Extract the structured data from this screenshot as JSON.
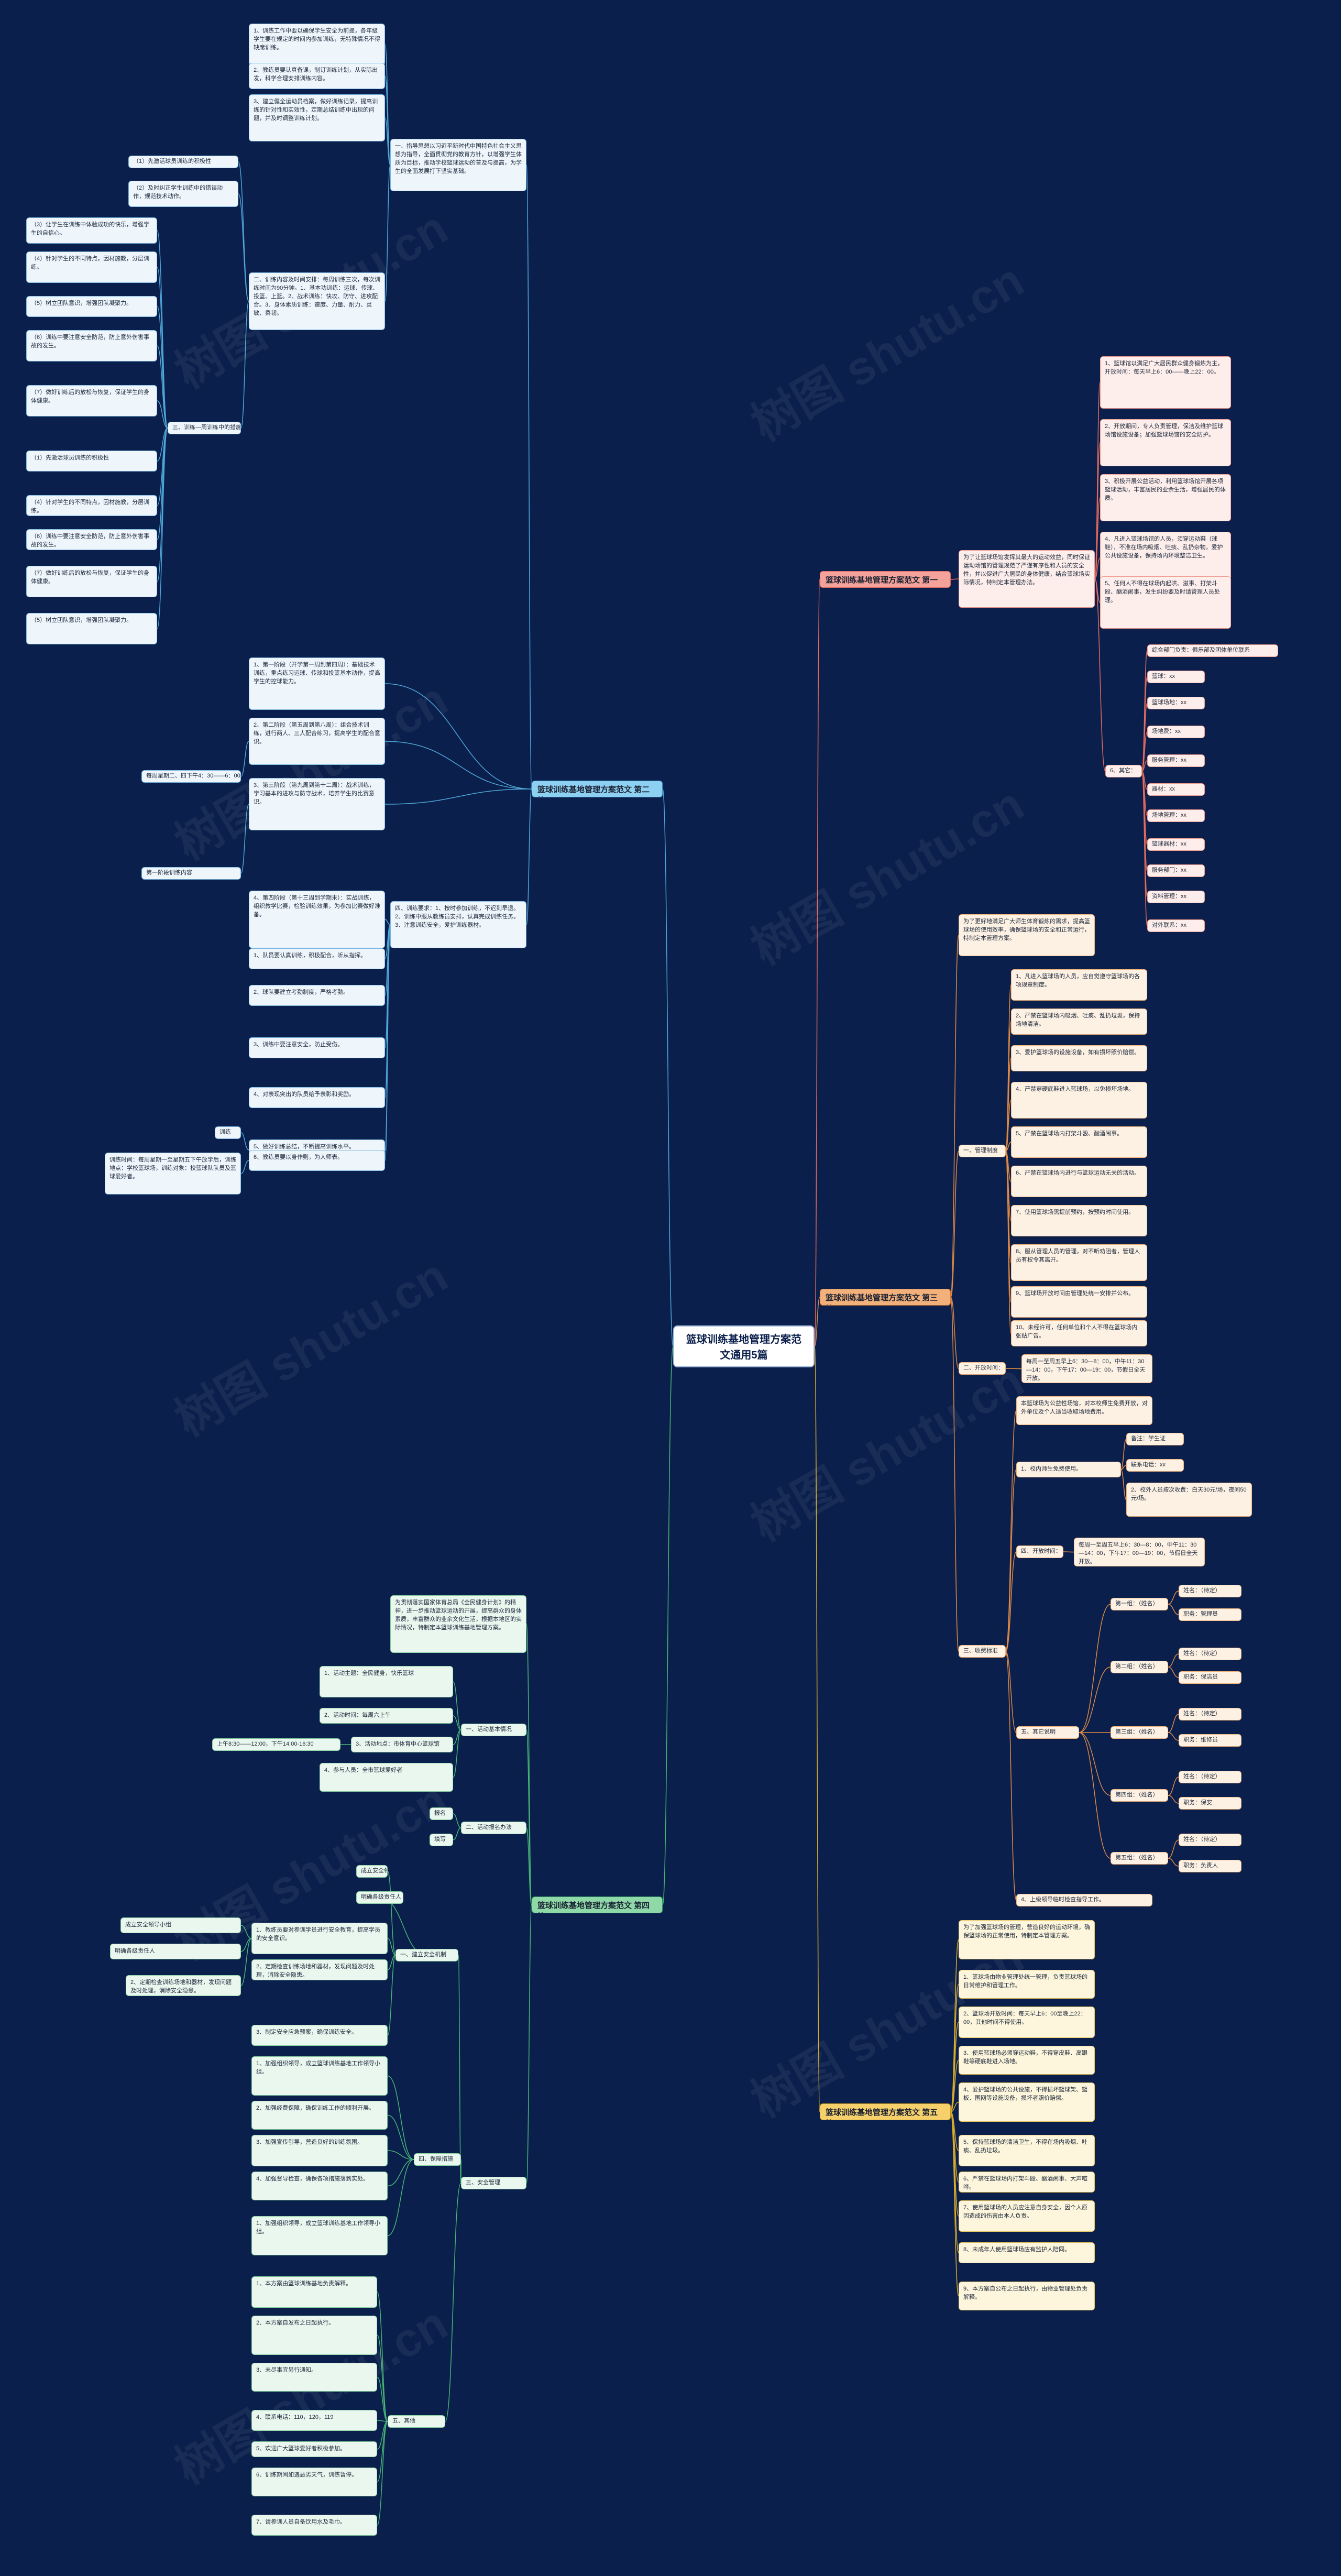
{
  "root": "篮球训练基地管理方案范文通用5篇",
  "watermark": "树图 shutu.cn",
  "branches": {
    "b1": "篮球训练基地管理方案范文 第一篇",
    "b2": "篮球训练基地管理方案范文 第二篇",
    "b3": "篮球训练基地管理方案范文 第三篇",
    "b4": "篮球训练基地管理方案范文 第四篇",
    "b5": "篮球训练基地管理方案范文 第五篇"
  },
  "b1": {
    "intro": "为了让篮球场馆发挥其最大的运动效益，同时保证运动场馆的管理规范了严谨有序性和人员的安全性，并以促进广大居民的身体健康，结合篮球场实际情况，特制定本管理办法。",
    "items": [
      "1、篮球馆以满足广大居民群众健身锻炼为主，开放时间：每天早上6：00——晚上22：00。",
      "2、开放期间，专人负责管理，保洁及维护篮球场馆设施设备；加强篮球场馆的安全防护。",
      "3、积极开展公益活动，利用篮球场馆开展各项篮球活动，丰富居民的业余生活，增强居民的体质。",
      "4、凡进入篮球场馆的人员，须穿运动鞋（球鞋），不准在场内吸烟、吐痰、乱扔杂物，爱护公共设施设备，保持场内环境整洁卫生。",
      "5、任何人不得在球场内起哄、滋事、打架斗殴、酗酒闹事，发生纠纷要及时请管理人员处理。"
    ],
    "sub_parent": "6、其它：",
    "subs": [
      "综合部门负责：俱乐部及团体单位联系",
      "篮球：xx",
      "篮球场地：xx",
      "场地费：xx",
      "服务管理：xx",
      "器材：xx",
      "场地管理：xx",
      "篮球器材：xx",
      "服务部门：xx",
      "资料管理：xx",
      "对外联系：xx"
    ]
  },
  "b2": {
    "goal": "一、指导思想以习近平新时代中国特色社会主义思想为指导，全面贯彻党的教育方针，以增强学生体质为目标，推动学校篮球运动的普及与提高，为学生的全面发展打下坚实基础。",
    "g_items": [
      "1、训练工作中要以确保学生安全为前提，各年级学生要在规定的时间内参加训练，无特殊情况不得缺席训练。",
      "2、教练员要认真备课，制订训练计划，从实际出发，科学合理安排训练内容。",
      "3、建立健全运动员档案，做好训练记录，提高训练的针对性和实效性，定期总结训练中出现的问题，并及时调整训练计划。"
    ],
    "section2": "二、训练内容及时间安排：每周训练三次，每次训练时间为90分钟。1、基本功训练：运球、传球、投篮、上篮。2、战术训练：快攻、防守、进攻配合。3、身体素质训练：速度、力量、耐力、灵敏、柔韧。",
    "left_items": [
      "（1）先激活球员训练的积极性",
      "（2）及时纠正学生训练中的错误动作，规范技术动作。",
      "（3）让学生在训练中体验成功的快乐，增强学生的自信心。",
      "（4）针对学生的不同特点，因材施教，分层训练。",
      "（5）树立团队意识，增强团队凝聚力。",
      "（6）训练中要注意安全防范，防止意外伤害事故的发生。",
      "（7）做好训练后的放松与恢复，保证学生的身体健康。"
    ],
    "label_class": "三、训练—周训练中的措施：",
    "mid_items": [
      "1、第一阶段（开学第一周到第四周）：基础技术训练，重点练习运球、传球和投篮基本动作，提高学生的控球能力。",
      "2、第二阶段（第五周到第八周）：组合技术训练，进行两人、三人配合练习，提高学生的配合意识。",
      "3、第三阶段（第九周到第十二周）：战术训练，学习基本的进攻与防守战术，培养学生的比赛意识。",
      "4、第四阶段（第十三周到学期末）：实战训练，组织教学比赛，检验训练效果，为参加比赛做好准备。"
    ],
    "schedule_left": "每周星期二、四下午4：30——6：00",
    "schedule_left2": "第一阶段训练内容",
    "sec4": "四、训练要求：1、按时参加训练，不迟到早退。2、训练中服从教练员安排，认真完成训练任务。3、注意训练安全，爱护训练器材。",
    "tail": [
      "1、队员要认真训练，积极配合，听从指挥。",
      "2、球队要建立考勤制度，严格考勤。",
      "3、训练中要注意安全，防止受伤。",
      "4、对表现突出的队员给予表彰和奖励。",
      "5、做好训练总结，不断提高训练水平。",
      "6、教练员要以身作则，为人师表。"
    ],
    "tail_small": "训练",
    "tail_left": "训练时间：每周星期一至星期五下午放学后，训练地点：学校篮球场，训练对象：校篮球队队员及篮球爱好者。"
  },
  "b3": {
    "intro": "为了更好地满足广大师生体育锻炼的需求，提高篮球场的使用效率，确保篮球场的安全和正常运行，特制定本管理方案。",
    "section1": "一、管理制度",
    "rules": [
      "1、凡进入篮球场的人员，应自觉遵守篮球场的各项规章制度。",
      "2、严禁在篮球场内吸烟、吐痰、乱扔垃圾，保持场地清洁。",
      "3、爱护篮球场的设施设备，如有损坏照价赔偿。",
      "4、严禁穿硬底鞋进入篮球场，以免损坏场地。",
      "5、严禁在篮球场内打架斗殴、酗酒闹事。",
      "6、严禁在篮球场内进行与篮球运动无关的活动。",
      "7、使用篮球场需提前预约，按预约时间使用。",
      "8、服从管理人员的管理，对不听劝阻者，管理人员有权令其离开。",
      "9、篮球场开放时间由管理处统一安排并公布。",
      "10、未经许可，任何单位和个人不得在篮球场内张贴广告。"
    ],
    "section2": "二、开放时间：",
    "open_hours": "每周一至周五早上6：30—8：00，中午11：30—14：00，下午17：00—19：00，节假日全天开放。",
    "section3": "三、收费标准",
    "fee_intro": "本篮球场为公益性场馆，对本校师生免费开放，对外单位及个人适当收取场地费用。",
    "fee_items": [
      "1、校内师生免费使用。",
      "2、校外人员按次收费：白天30元/场，夜间50元/场。"
    ],
    "fee_sub": [
      "备注：学生证",
      "联系电话：xx"
    ],
    "section4": "四、开放时间：",
    "section5": "五、其它说明",
    "people": [
      "第一组：（姓名）",
      "第二组：（姓名）",
      "第三组：（姓名）",
      "第四组：（姓名）",
      "第五组：（姓名）"
    ],
    "people_sub": [
      "姓名：（待定）",
      "职务：管理员",
      "姓名：（待定）",
      "职务：保洁员",
      "姓名：（待定）",
      "职务：维修员",
      "姓名：（待定）",
      "职务：保安",
      "姓名：（待定）",
      "职务：负责人"
    ],
    "last": "4、上级领导临时检查指导工作。"
  },
  "b4": {
    "intro": "为贯彻落实国家体育总局《全民健身计划》的精神，进一步推动篮球运动的开展，提高群众的身体素质，丰富群众的业余文化生活，根据本地区的实际情况，特制定本篮球训练基地管理方案。",
    "sec1": "一、活动基本情况",
    "act": [
      "1、活动主题：全民健身，快乐篮球",
      "2、活动时间：每周六上午",
      "3、活动地点：市体育中心篮球馆",
      "4、参与人员：全市篮球爱好者"
    ],
    "schedule": "上午8:30——12:00，下午14:00-16:30",
    "sec2": "二、活动报名办法",
    "sec2_sub": [
      "报名",
      "填写"
    ],
    "sec3": "三、安全管理",
    "safety_head": "一、建立安全机制",
    "safety_items": [
      "1、教练员要对参训学员进行安全教育，提高学员的安全意识。",
      "2、定期检查训练场地和器材，发现问题及时处理，消除安全隐患。",
      "3、制定安全应急预案，确保训练安全。"
    ],
    "left_notes": [
      "成立安全领导小组",
      "明确各级责任人"
    ],
    "sec4": "四、保障措施",
    "guarantee": [
      "1、加强组织领导，成立篮球训练基地工作领导小组。",
      "2、加强经费保障，确保训练工作的顺利开展。",
      "3、加强宣传引导，营造良好的训练氛围。",
      "4、加强督导检查，确保各项措施落到实处。"
    ],
    "sec5": "五、其他",
    "other": [
      "1、本方案由篮球训练基地负责解释。",
      "2、本方案自发布之日起执行。",
      "3、未尽事宜另行通知。",
      "4、联系电话：110，120，119",
      "5、欢迎广大篮球爱好者积极参加。",
      "6、训练期间如遇恶劣天气，训练暂停。",
      "7、请参训人员自备饮用水及毛巾。"
    ]
  },
  "b5": {
    "intro": "为了加强篮球场的管理，营造良好的运动环境，确保篮球场的正常使用，特制定本管理方案。",
    "items": [
      "1、篮球场由物业管理处统一管理，负责篮球场的日常维护和管理工作。",
      "2、篮球场开放时间：每天早上6：00至晚上22：00，其他时间不得使用。",
      "3、使用篮球场必须穿运动鞋，不得穿皮鞋、高跟鞋等硬底鞋进入场地。",
      "4、爱护篮球场的公共设施，不得损坏篮球架、篮板、围网等设施设备，损坏者照价赔偿。",
      "5、保持篮球场的清洁卫生，不得在场内吸烟、吐痰、乱扔垃圾。",
      "6、严禁在篮球场内打架斗殴、酗酒闹事、大声喧哗。",
      "7、使用篮球场的人员应注意自身安全，因个人原因造成的伤害由本人负责。",
      "8、未成年人使用篮球场应有监护人陪同。",
      "9、本方案自公布之日起执行，由物业管理处负责解释。"
    ]
  }
}
